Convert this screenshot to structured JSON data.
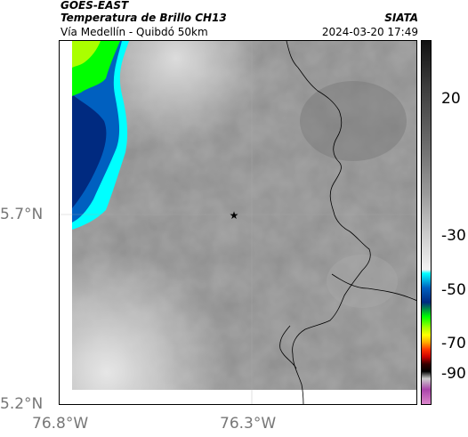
{
  "header": {
    "satellite": "GOES-EAST",
    "product": "Temperatura de Brillo CH13",
    "route": "Vía Medellín - Quibdó 50km",
    "agency": "SIATA",
    "datetime": "2024-03-20 17:49"
  },
  "axes": {
    "y_ticks": [
      "5.7°N",
      "5.2°N"
    ],
    "x_ticks": [
      "76.8°W",
      "76.3°W"
    ]
  },
  "colorbar": {
    "ticks": [
      "20",
      "-30",
      "-50",
      "-70",
      "-90"
    ],
    "stops": [
      "#111111",
      "#3a3a3a",
      "#6a6a6a",
      "#9a9a9a",
      "#cfcfcf",
      "#f2f2f2",
      "#00ffff",
      "#0060c0",
      "#002a80",
      "#00ff00",
      "#aaff00",
      "#ffff00",
      "#ffaa00",
      "#ff3300",
      "#cc0000",
      "#330000",
      "#000000",
      "#cccccc",
      "#aa44aa",
      "#dd88cc"
    ]
  },
  "map": {
    "marker_icon": "star-icon",
    "colors": {
      "cloud_gray": "#8e8e8e",
      "cold_blue": "#002a80",
      "cold_cyan": "#00ffff",
      "cold_green": "#00ff00",
      "border": "#000000",
      "grid": "#aaaaaa"
    }
  }
}
